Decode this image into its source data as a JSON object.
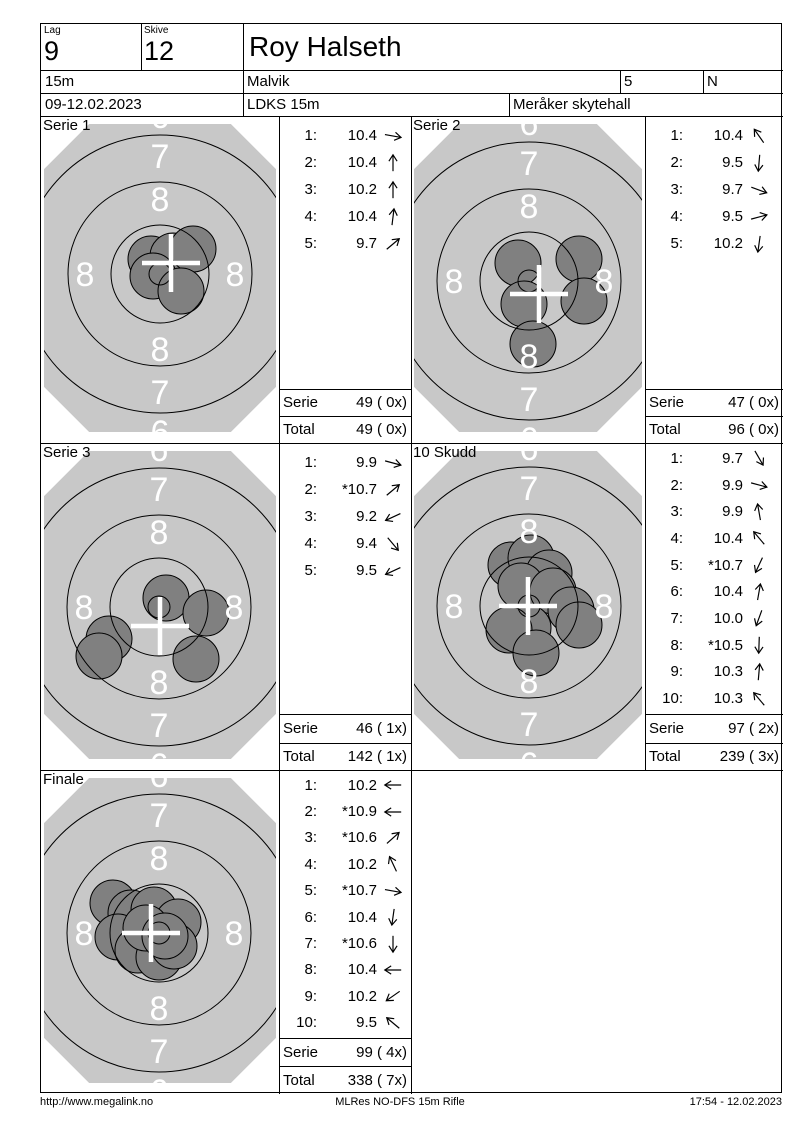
{
  "header": {
    "lag_label": "Lag",
    "lag_value": "9",
    "skive_label": "Skive",
    "skive_value": "12",
    "shooter_name": "Roy Halseth",
    "range": "15m",
    "club": "Malvik",
    "field5": "5",
    "field6": "N",
    "dates": "09-12.02.2023",
    "competition": "LDKS 15m",
    "venue": "Meråker skytehall"
  },
  "footer": {
    "left": "http://www.megalink.no",
    "center": "MLRes NO-DFS 15m Rifle",
    "right": "17:54 - 12.02.2023"
  },
  "colors": {
    "target_bg": "#c8c8c8",
    "hole_fill": "#808080",
    "ring_line": "#000000",
    "ring_label": "#ffffff",
    "cross": "#ffffff",
    "text": "#000000"
  },
  "target_style": {
    "rings": [
      11,
      49,
      92,
      139,
      186
    ],
    "ring_labels": [
      {
        "text": "8",
        "r": 75,
        "pos": [
          "top",
          "bottom",
          "left",
          "right"
        ]
      },
      {
        "text": "7",
        "r": 118,
        "pos": [
          "top",
          "bottom"
        ]
      },
      {
        "text": "6",
        "r": 158,
        "pos": [
          "top",
          "bottom"
        ]
      }
    ],
    "hole_radius": 23,
    "cross_arm": 29
  },
  "series": [
    {
      "title": "Serie 1",
      "shots": [
        {
          "no": "1:",
          "value": "10.4",
          "dir": 350
        },
        {
          "no": "2:",
          "value": "10.4",
          "dir": 90
        },
        {
          "no": "3:",
          "value": "10.2",
          "dir": 90
        },
        {
          "no": "4:",
          "value": "10.4",
          "dir": 83
        },
        {
          "no": "5:",
          "value": "9.7",
          "dir": 40
        }
      ],
      "serie_label": "Serie",
      "serie_value": "49 ( 0x)",
      "total_label": "Total",
      "total_value": "49 ( 0x)",
      "target": {
        "center": [
          119,
          158
        ],
        "cross": [
          130,
          147
        ],
        "holes": [
          [
            110,
            143
          ],
          [
            132,
            140
          ],
          [
            152,
            133
          ],
          [
            112,
            160
          ],
          [
            140,
            175
          ]
        ]
      }
    },
    {
      "title": "Serie 2",
      "shots": [
        {
          "no": "1:",
          "value": "10.4",
          "dir": 125
        },
        {
          "no": "2:",
          "value": "9.5",
          "dir": 265
        },
        {
          "no": "3:",
          "value": "9.7",
          "dir": 340
        },
        {
          "no": "4:",
          "value": "9.5",
          "dir": 15
        },
        {
          "no": "5:",
          "value": "10.2",
          "dir": 262
        }
      ],
      "serie_label": "Serie",
      "serie_value": "47 ( 0x)",
      "total_label": "Total",
      "total_value": "96 ( 0x)",
      "target": {
        "center": [
          118,
          165
        ],
        "cross": [
          128,
          178
        ],
        "holes": [
          [
            107,
            147
          ],
          [
            168,
            143
          ],
          [
            113,
            188
          ],
          [
            173,
            185
          ],
          [
            122,
            228
          ]
        ]
      }
    },
    {
      "title": "Serie 3",
      "shots": [
        {
          "no": "1:",
          "value": "9.9",
          "dir": 345
        },
        {
          "no": "2:",
          "value": "*10.7",
          "dir": 40
        },
        {
          "no": "3:",
          "value": "9.2",
          "dir": 205
        },
        {
          "no": "4:",
          "value": "9.4",
          "dir": 310
        },
        {
          "no": "5:",
          "value": "9.5",
          "dir": 205
        }
      ],
      "serie_label": "Serie",
      "serie_value": "46 ( 1x)",
      "total_label": "Total",
      "total_value": "142 ( 1x)",
      "target": {
        "center": [
          118,
          164
        ],
        "cross": [
          119,
          183
        ],
        "holes": [
          [
            125,
            155
          ],
          [
            165,
            170
          ],
          [
            68,
            196
          ],
          [
            58,
            213
          ],
          [
            155,
            216
          ]
        ]
      }
    },
    {
      "title": "10 Skudd",
      "shots": [
        {
          "no": "1:",
          "value": "9.7",
          "dir": 300
        },
        {
          "no": "2:",
          "value": "9.9",
          "dir": 345
        },
        {
          "no": "3:",
          "value": "9.9",
          "dir": 100
        },
        {
          "no": "4:",
          "value": "10.4",
          "dir": 130
        },
        {
          "no": "5:",
          "value": "*10.7",
          "dir": 245
        },
        {
          "no": "6:",
          "value": "10.4",
          "dir": 80
        },
        {
          "no": "7:",
          "value": "10.0",
          "dir": 250
        },
        {
          "no": "8:",
          "value": "*10.5",
          "dir": 268
        },
        {
          "no": "9:",
          "value": "10.3",
          "dir": 85
        },
        {
          "no": "10:",
          "value": "10.3",
          "dir": 130
        }
      ],
      "serie_label": "Serie",
      "serie_value": "97 ( 2x)",
      "total_label": "Total",
      "total_value": "239 ( 3x)",
      "target": {
        "center": [
          118,
          163
        ],
        "cross": [
          117,
          163
        ],
        "holes": [
          [
            100,
            122
          ],
          [
            120,
            115
          ],
          [
            138,
            130
          ],
          [
            110,
            143
          ],
          [
            142,
            148
          ],
          [
            160,
            167
          ],
          [
            168,
            182
          ],
          [
            117,
            185
          ],
          [
            98,
            187
          ],
          [
            125,
            210
          ]
        ]
      }
    },
    {
      "title": "Finale",
      "shots": [
        {
          "no": "1:",
          "value": "10.2",
          "dir": 180
        },
        {
          "no": "2:",
          "value": "*10.9",
          "dir": 180
        },
        {
          "no": "3:",
          "value": "*10.6",
          "dir": 42
        },
        {
          "no": "4:",
          "value": "10.2",
          "dir": 115
        },
        {
          "no": "5:",
          "value": "*10.7",
          "dir": 350
        },
        {
          "no": "6:",
          "value": "10.4",
          "dir": 262
        },
        {
          "no": "7:",
          "value": "*10.6",
          "dir": 270
        },
        {
          "no": "8:",
          "value": "10.4",
          "dir": 180
        },
        {
          "no": "9:",
          "value": "10.2",
          "dir": 215
        },
        {
          "no": "10:",
          "value": "9.5",
          "dir": 140
        }
      ],
      "serie_label": "Serie",
      "serie_value": "99 ( 4x)",
      "total_label": "Total",
      "total_value": "338 ( 7x)",
      "target": {
        "center": [
          118,
          163
        ],
        "cross": [
          110,
          163
        ],
        "holes": [
          [
            72,
            133
          ],
          [
            90,
            143
          ],
          [
            113,
            140
          ],
          [
            137,
            152
          ],
          [
            77,
            167
          ],
          [
            97,
            180
          ],
          [
            118,
            187
          ],
          [
            133,
            176
          ],
          [
            105,
            158
          ],
          [
            124,
            166
          ]
        ]
      }
    }
  ]
}
